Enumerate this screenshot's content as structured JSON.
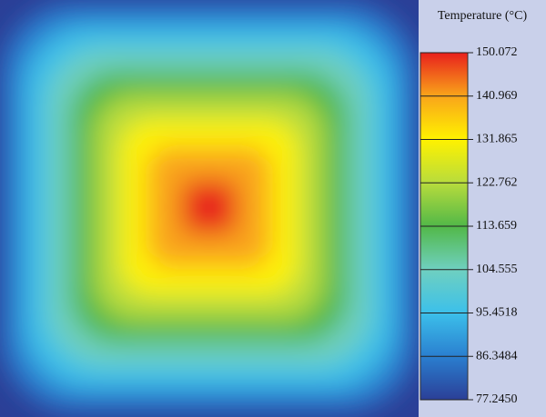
{
  "chart_data": {
    "type": "heatmap",
    "title": "Temperature (°C)",
    "clim": [
      77.245,
      150.072
    ],
    "cticks": [
      {
        "value": 77.245,
        "label": "77.2450"
      },
      86.3484,
      95.4518,
      104.555,
      113.659,
      122.762,
      131.865,
      140.969,
      150.072
    ],
    "colors": [
      "#2b3f97",
      "#2a7fd0",
      "#3cc0ea",
      "#6fd0c0",
      "#52b848",
      "#b8dc3c",
      "#fff200",
      "#f9a51a",
      "#e8201c"
    ]
  }
}
